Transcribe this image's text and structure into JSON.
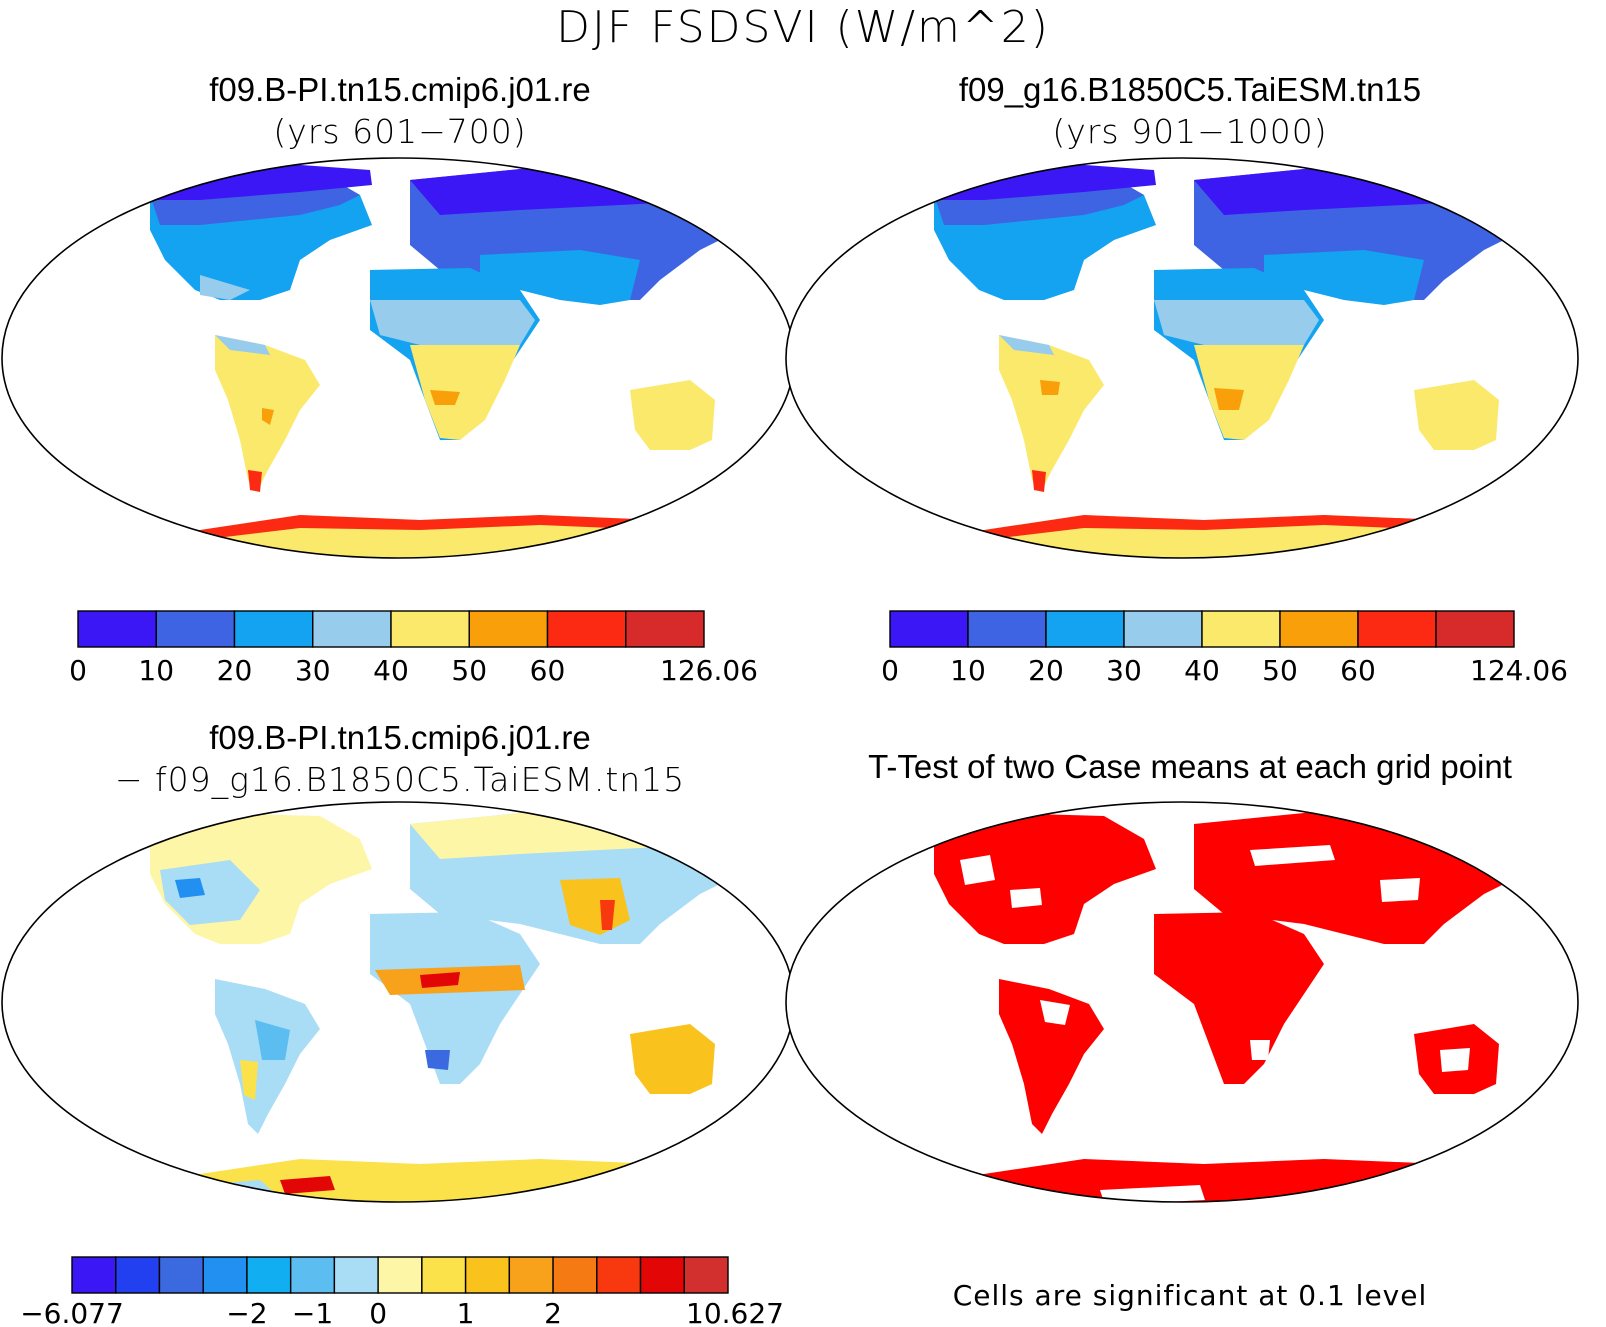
{
  "main_title": "DJF FSDSVI (W/m^2)",
  "colors": {
    "c0": "#3b17f5",
    "c1": "#3f64e3",
    "c2": "#13a3f1",
    "c3": "#98cced",
    "c4": "#fbe96c",
    "c5": "#f99f0a",
    "c6": "#fc2a12",
    "c7": "#d72a2a",
    "sig": "#ff0000",
    "coast": "#000000"
  },
  "panels": [
    {
      "id": "case1",
      "title": "f09.B-PI.tn15.cmip6.j01.re",
      "subtitle": "(yrs 601−700)",
      "colorbar": {
        "colors": [
          "#3b17f5",
          "#3f64e3",
          "#13a3f1",
          "#98cced",
          "#fbe96c",
          "#f99f0a",
          "#fc2a12",
          "#d72a2a"
        ],
        "labels": [
          "0",
          "10",
          "20",
          "30",
          "40",
          "50",
          "60",
          "126.06"
        ]
      }
    },
    {
      "id": "case2",
      "title": "f09_g16.B1850C5.TaiESM.tn15",
      "subtitle": "(yrs 901−1000)",
      "colorbar": {
        "colors": [
          "#3b17f5",
          "#3f64e3",
          "#13a3f1",
          "#98cced",
          "#fbe96c",
          "#f99f0a",
          "#fc2a12",
          "#d72a2a"
        ],
        "labels": [
          "0",
          "10",
          "20",
          "30",
          "40",
          "50",
          "60",
          "124.06"
        ]
      }
    },
    {
      "id": "diff",
      "title": "f09.B-PI.tn15.cmip6.j01.re",
      "subtitle": "− f09_g16.B1850C5.TaiESM.tn15",
      "colorbar": {
        "colors": [
          "#3b17f5",
          "#2240f0",
          "#3b6ae0",
          "#2190f0",
          "#12aef2",
          "#5bbdf0",
          "#a9dcf5",
          "#fdf6a6",
          "#fbe24a",
          "#f9c21c",
          "#f8a11a",
          "#f67a14",
          "#f8380f",
          "#e30606",
          "#d22f2f"
        ],
        "labels": [
          "−6.077",
          "−2",
          "−1",
          "0",
          "1",
          "2",
          "10.627"
        ]
      }
    },
    {
      "id": "ttest",
      "title": "T-Test of two Case means at each grid point",
      "note": "Cells are significant at 0.1 level"
    }
  ]
}
